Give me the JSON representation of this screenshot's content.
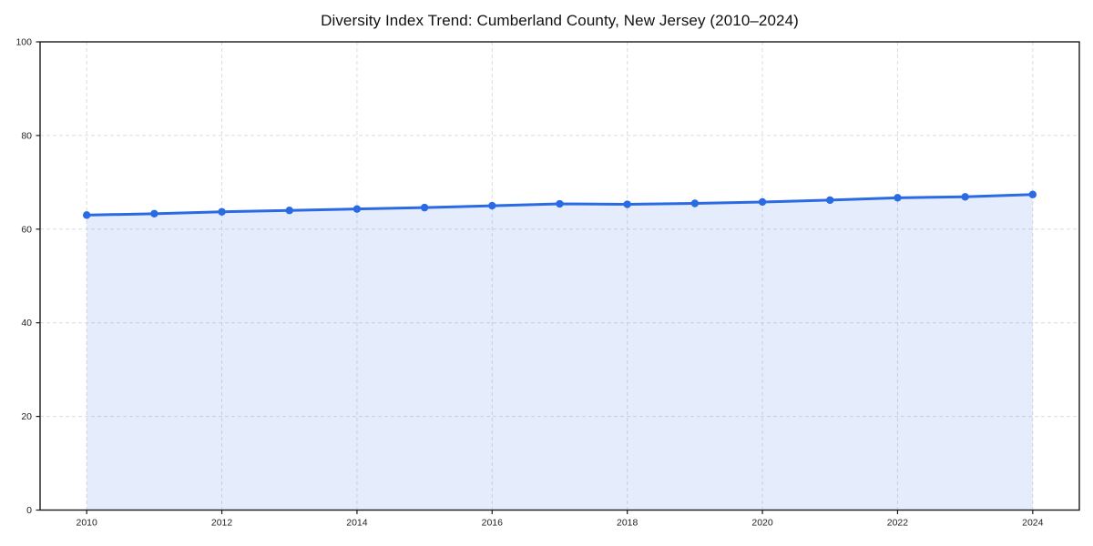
{
  "page": {
    "background": "#ffffff"
  },
  "chart_data": {
    "type": "line",
    "title": "Diversity Index Trend: Cumberland County, New Jersey (2010–2024)",
    "xlabel": "",
    "ylabel": "",
    "x": [
      2010,
      2011,
      2012,
      2013,
      2014,
      2015,
      2016,
      2017,
      2018,
      2019,
      2020,
      2021,
      2022,
      2023,
      2024
    ],
    "series": [
      {
        "name": "Diversity Index",
        "values": [
          63.0,
          63.3,
          63.7,
          64.0,
          64.3,
          64.6,
          65.0,
          65.4,
          65.3,
          65.5,
          65.8,
          66.2,
          66.7,
          66.9,
          67.4
        ]
      }
    ],
    "ylim": [
      0,
      100
    ],
    "xlim": [
      2009.31,
      2024.69
    ],
    "y_ticks": [
      0,
      20,
      40,
      60,
      80,
      100
    ],
    "x_ticks": [
      2010,
      2012,
      2014,
      2016,
      2018,
      2020,
      2022,
      2024
    ],
    "grid": true,
    "grid_style": "dashed",
    "legend": "none",
    "marker": "circle",
    "colors": {
      "line": "#2a6ae3",
      "fill": "rgba(42, 106, 227, 0.12)",
      "grid": "#dcdcdc",
      "spine": "#1a1a1a",
      "tick": "#1a1a1a",
      "tick_label": "#1f1f1f",
      "title": "#111111"
    }
  }
}
